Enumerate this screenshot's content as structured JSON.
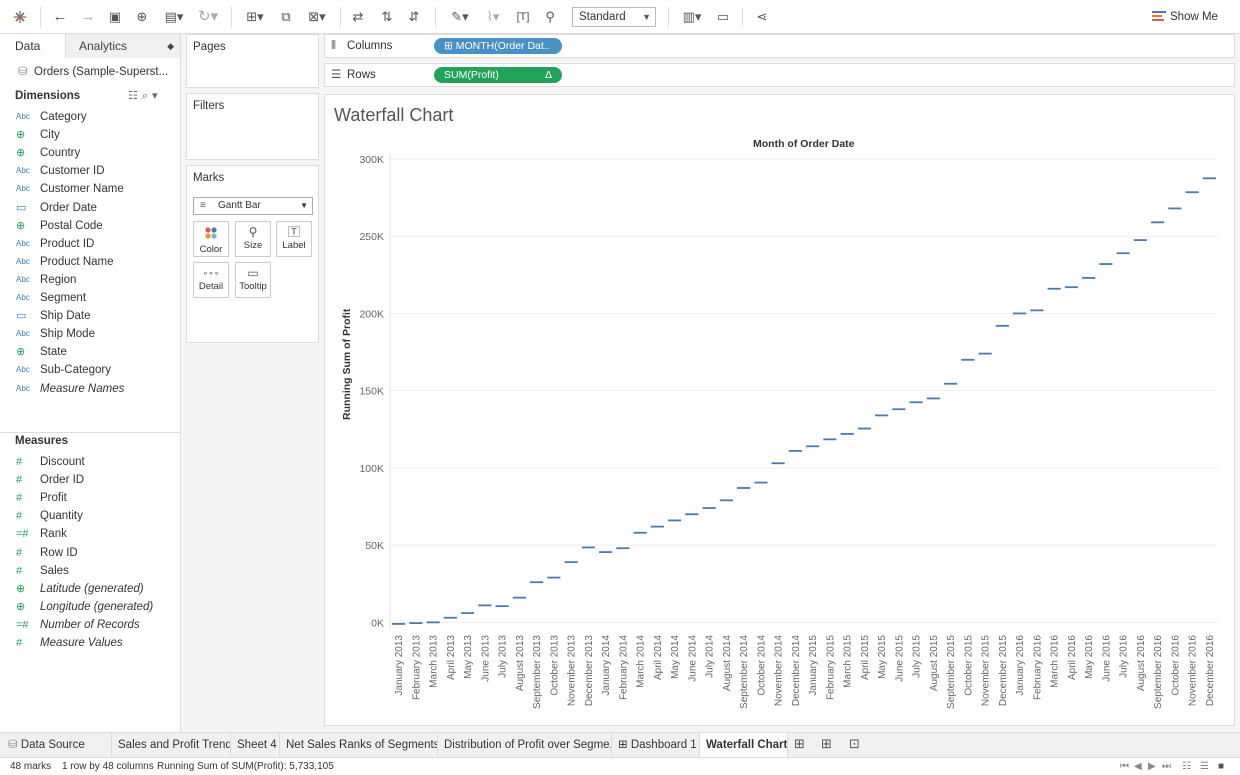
{
  "toolbar": {
    "view_select": "Standard",
    "show_me": "Show Me"
  },
  "data_pane": {
    "tabs": [
      "Data",
      "Analytics"
    ],
    "data_source": "Orders (Sample-Superst...",
    "dimensions_label": "Dimensions",
    "dimensions": [
      {
        "name": "Category",
        "type": "Abc"
      },
      {
        "name": "City",
        "type": "geo"
      },
      {
        "name": "Country",
        "type": "geo"
      },
      {
        "name": "Customer ID",
        "type": "Abc"
      },
      {
        "name": "Customer Name",
        "type": "Abc"
      },
      {
        "name": "Order Date",
        "type": "date"
      },
      {
        "name": "Postal Code",
        "type": "geo"
      },
      {
        "name": "Product ID",
        "type": "Abc"
      },
      {
        "name": "Product Name",
        "type": "Abc"
      },
      {
        "name": "Region",
        "type": "Abc"
      },
      {
        "name": "Segment",
        "type": "Abc"
      },
      {
        "name": "Ship Date",
        "type": "date"
      },
      {
        "name": "Ship Mode",
        "type": "Abc"
      },
      {
        "name": "State",
        "type": "geo"
      },
      {
        "name": "Sub-Category",
        "type": "Abc"
      },
      {
        "name": "Measure Names",
        "type": "Abc",
        "italic": true
      }
    ],
    "measures_label": "Measures",
    "measures": [
      {
        "name": "Discount",
        "type": "#"
      },
      {
        "name": "Order ID",
        "type": "#"
      },
      {
        "name": "Profit",
        "type": "#"
      },
      {
        "name": "Quantity",
        "type": "#"
      },
      {
        "name": "Rank",
        "type": "=#"
      },
      {
        "name": "Row ID",
        "type": "#"
      },
      {
        "name": "Sales",
        "type": "#"
      },
      {
        "name": "Latitude (generated)",
        "type": "geo",
        "italic": true
      },
      {
        "name": "Longitude (generated)",
        "type": "geo",
        "italic": true
      },
      {
        "name": "Number of Records",
        "type": "=#",
        "italic": true
      },
      {
        "name": "Measure Values",
        "type": "#",
        "italic": true
      }
    ]
  },
  "cards": {
    "pages": "Pages",
    "filters": "Filters",
    "marks": "Marks",
    "mark_type": "Gantt Bar",
    "buttons": [
      "Color",
      "Size",
      "Label",
      "Detail",
      "Tooltip"
    ]
  },
  "shelves": {
    "columns_label": "Columns",
    "columns_pill": "MONTH(Order Dat..",
    "rows_label": "Rows",
    "rows_pill": "SUM(Profit)",
    "rows_pill_delta": "Δ"
  },
  "viz": {
    "title": "Waterfall Chart",
    "column_header": "Month of Order Date",
    "y_title": "Running Sum of Profit"
  },
  "chart_data": {
    "type": "gantt",
    "title": "Waterfall Chart",
    "xlabel": "Month of Order Date",
    "ylabel": "Running Sum of Profit",
    "ylim": [
      -3000,
      300000
    ],
    "yticks": [
      0,
      50000,
      100000,
      150000,
      200000,
      250000,
      300000
    ],
    "ytick_labels": [
      "0K",
      "50K",
      "100K",
      "150K",
      "200K",
      "250K",
      "300K"
    ],
    "grid": true,
    "x": [
      "January 2013",
      "February 2013",
      "March 2013",
      "April 2013",
      "May 2013",
      "June 2013",
      "July 2013",
      "August 2013",
      "September 2013",
      "October 2013",
      "November 2013",
      "December 2013",
      "January 2014",
      "February 2014",
      "March 2014",
      "April 2014",
      "May 2014",
      "June 2014",
      "July 2014",
      "August 2014",
      "September 2014",
      "October 2014",
      "November 2014",
      "December 2014",
      "January 2015",
      "February 2015",
      "March 2015",
      "April 2015",
      "May 2015",
      "June 2015",
      "July 2015",
      "August 2015",
      "September 2015",
      "October 2015",
      "November 2015",
      "December 2015",
      "January 2016",
      "February 2016",
      "March 2016",
      "April 2016",
      "May 2016",
      "June 2016",
      "July 2016",
      "August 2016",
      "September 2016",
      "October 2016",
      "November 2016",
      "December 2016"
    ],
    "values": [
      -1000,
      -500,
      0,
      3000,
      6000,
      11000,
      10500,
      16000,
      26000,
      29000,
      39000,
      48500,
      45500,
      48000,
      58000,
      62000,
      66000,
      70000,
      74000,
      79000,
      87000,
      90500,
      103000,
      111000,
      114000,
      118500,
      122000,
      125500,
      134000,
      138000,
      142500,
      145000,
      154500,
      170000,
      174000,
      192000,
      200000,
      202000,
      216000,
      217000,
      223000,
      232000,
      239000,
      247500,
      259000,
      268000,
      278500,
      287500
    ],
    "color": "#4e79a7"
  },
  "sheet_tabs": {
    "data_source": "Data Source",
    "tabs": [
      "Sales and Profit Trend",
      "Sheet 4",
      "Net Sales Ranks of Segments",
      "Distribution of Profit over Segme...",
      "Dashboard 1",
      "Waterfall Chart"
    ],
    "active": "Waterfall Chart"
  },
  "status": {
    "marks": "48 marks",
    "rows_cols": "1 row by 48 columns",
    "summary": "Running Sum of SUM(Profit): 5,733,105"
  }
}
